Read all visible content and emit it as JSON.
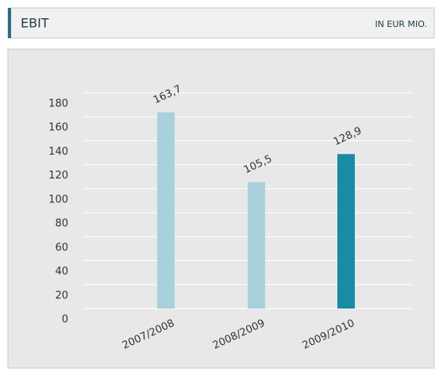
{
  "chart_data": {
    "type": "bar",
    "title": "EBIT",
    "subtitle": "IN EUR MIO.",
    "categories": [
      "2007/2008",
      "2008/2009",
      "2009/2010"
    ],
    "values": [
      163.7,
      105.5,
      128.9
    ],
    "value_labels": [
      "163,7",
      "105,5",
      "128,9"
    ],
    "colors": [
      "#a9d1dd",
      "#a9d1dd",
      "#1a8ba4"
    ],
    "ylim": [
      0,
      180
    ],
    "yticks": [
      0,
      20,
      40,
      60,
      80,
      100,
      120,
      140,
      160,
      180
    ],
    "grid": true
  }
}
